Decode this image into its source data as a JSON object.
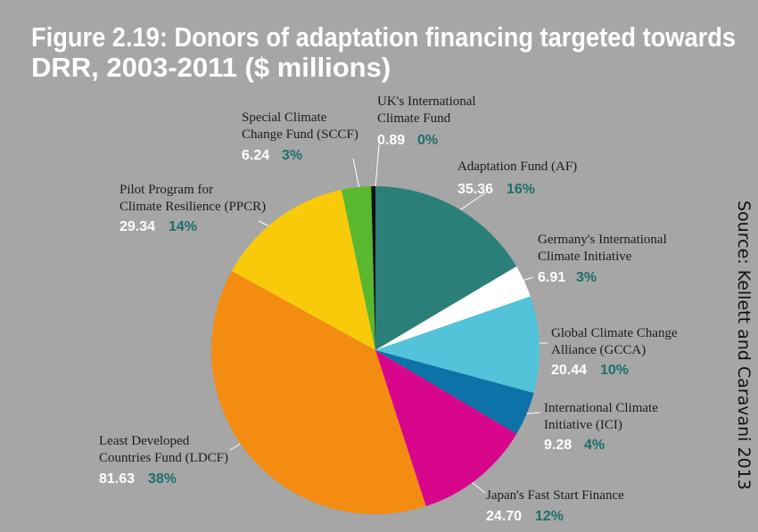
{
  "chart_data": {
    "type": "pie",
    "title": "Figure 2.19: Donors of adaptation financing targeted towards DRR, 2003-2011 ($ millions)",
    "source": "Source: Kellett and Caravani 2013",
    "categories": [
      "Adaptation Fund (AF)",
      "Germany's International Climate Initiative",
      "Global Climate Change Alliance (GCCA)",
      "International Climate Initiative (ICI)",
      "Japan's Fast Start Finance",
      "Least Developed Countries Fund (LDCF)",
      "Pilot Program for Climate Resilience (PPCR)",
      "Special Climate Change Fund (SCCF)",
      "UK's International Climate Fund"
    ],
    "values": [
      35.36,
      6.91,
      20.44,
      9.28,
      24.7,
      81.63,
      29.34,
      6.24,
      0.89
    ],
    "value_labels": [
      "35.36",
      "6.91",
      "20.44",
      "9.28",
      "24.70",
      "81.63",
      "29.34",
      "6.24",
      "0.89"
    ],
    "percent_labels": [
      "16%",
      "3%",
      "10%",
      "4%",
      "12%",
      "38%",
      "14%",
      "3%",
      "0%"
    ],
    "colors": [
      "#2a8078",
      "#ffffff",
      "#52c3d9",
      "#0d72a7",
      "#d8068b",
      "#f48c12",
      "#f8ca0a",
      "#5ab82f",
      "#111111"
    ]
  }
}
